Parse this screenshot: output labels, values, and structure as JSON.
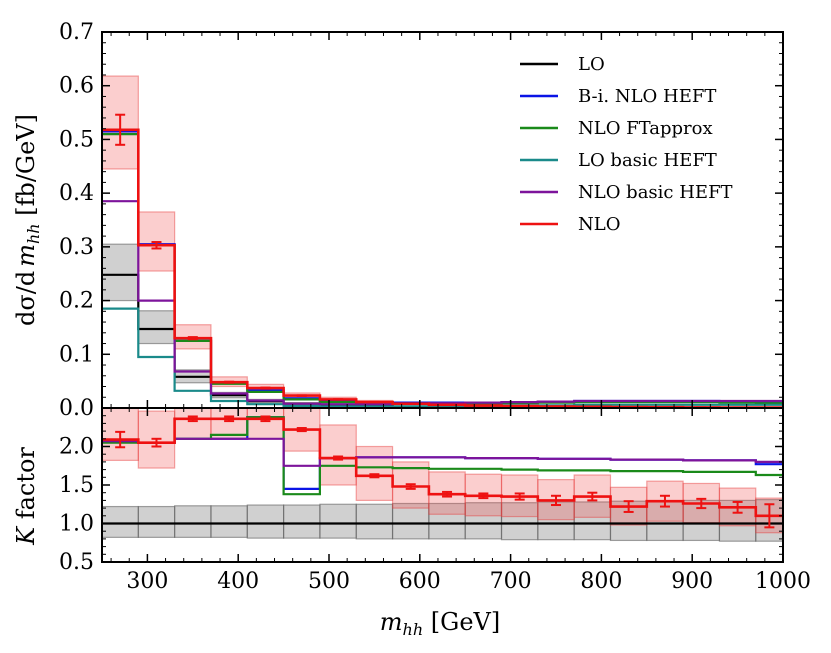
{
  "chart_data": [
    {
      "type": "line",
      "panel": "top",
      "ylabel": "dσ/d m_hh [fb/GeV]",
      "xlim": [
        250,
        1000
      ],
      "ylim": [
        0,
        0.7
      ],
      "yticks": [
        "0.0",
        "0.1",
        "0.2",
        "0.3",
        "0.4",
        "0.5",
        "0.6",
        "0.7"
      ],
      "bin_edges": [
        250,
        290,
        330,
        370,
        410,
        450,
        490,
        530,
        570,
        610,
        650,
        690,
        730,
        770,
        810,
        850,
        890,
        930,
        970,
        1000
      ],
      "legend_position": "top-right",
      "series": [
        {
          "name": "LO",
          "color": "#000000",
          "values": [
            0.248,
            0.147,
            0.058,
            0.024,
            0.013,
            0.008,
            0.005,
            0.0035,
            0.0025,
            0.0018,
            0.0013,
            0.001,
            0.0008,
            0.0006,
            0.0005,
            0.0004,
            0.0003,
            0.0003,
            0.0002
          ],
          "band_lo": [
            0.2,
            0.12,
            0.047,
            0.019,
            0.01,
            0.006,
            0.004,
            0.003,
            0.002,
            0.0015,
            0.001,
            0.0008,
            0.0006,
            0.0005,
            0.0004,
            0.0003,
            0.0002,
            0.0002,
            0.0002
          ],
          "band_hi": [
            0.305,
            0.181,
            0.071,
            0.029,
            0.016,
            0.01,
            0.006,
            0.004,
            0.003,
            0.002,
            0.0016,
            0.0012,
            0.001,
            0.0008,
            0.0006,
            0.0005,
            0.0004,
            0.0003,
            0.0003
          ]
        },
        {
          "name": "B-i. NLO HEFT",
          "color": "#0a14e6",
          "values": [
            0.515,
            0.305,
            0.125,
            0.048,
            0.033,
            0.018,
            0.013,
            0.011,
            0.01,
            0.01,
            0.01,
            0.011,
            0.012,
            0.013,
            0.013,
            0.013,
            0.013,
            0.012,
            0.012
          ]
        },
        {
          "name": "NLO FTapprox",
          "color": "#1a8a1a",
          "values": [
            0.51,
            0.303,
            0.125,
            0.045,
            0.03,
            0.016,
            0.011,
            0.009,
            0.008,
            0.008,
            0.008,
            0.009,
            0.01,
            0.011,
            0.011,
            0.011,
            0.011,
            0.01,
            0.009
          ]
        },
        {
          "name": "LO basic HEFT",
          "color": "#1a8a8a",
          "values": [
            0.185,
            0.095,
            0.032,
            0.013,
            0.007,
            0.004,
            0.003,
            0.003,
            0.003,
            0.004,
            0.004,
            0.005,
            0.005,
            0.006,
            0.006,
            0.006,
            0.006,
            0.006,
            0.006
          ]
        },
        {
          "name": "NLO basic HEFT",
          "color": "#7d149b",
          "values": [
            0.385,
            0.2,
            0.068,
            0.027,
            0.014,
            0.008,
            0.007,
            0.007,
            0.008,
            0.009,
            0.01,
            0.011,
            0.012,
            0.013,
            0.013,
            0.013,
            0.013,
            0.013,
            0.013
          ]
        },
        {
          "name": "NLO",
          "color": "#ee1111",
          "values": [
            0.518,
            0.303,
            0.13,
            0.048,
            0.037,
            0.023,
            0.016,
            0.011,
            0.008,
            0.006,
            0.0045,
            0.0035,
            0.0028,
            0.0022,
            0.0018,
            0.0014,
            0.0011,
            0.0009,
            0.0007
          ],
          "band_lo": [
            0.445,
            0.255,
            0.11,
            0.04,
            0.03,
            0.019,
            0.013,
            0.009,
            0.006,
            0.0045,
            0.0035,
            0.0027,
            0.0021,
            0.0017,
            0.0013,
            0.001,
            0.0008,
            0.0006,
            0.0005
          ],
          "band_hi": [
            0.618,
            0.365,
            0.155,
            0.058,
            0.044,
            0.028,
            0.02,
            0.014,
            0.01,
            0.0075,
            0.0055,
            0.0043,
            0.0034,
            0.0027,
            0.0022,
            0.0017,
            0.0013,
            0.0011,
            0.0009
          ],
          "err": [
            0.028,
            0.006,
            0.002,
            0.001,
            0.001,
            0.0005,
            0.0004,
            0.0003,
            0.0002,
            0.0002,
            0.0002,
            0.0001,
            0.0001,
            0.0001,
            0.0001,
            0.0001,
            0.0001,
            0.0001,
            0.0001
          ]
        }
      ]
    },
    {
      "type": "line",
      "panel": "bottom",
      "ylabel": "K factor",
      "xlabel": "m_hh [GeV]",
      "xlim": [
        250,
        1000
      ],
      "ylim": [
        0.5,
        2.5
      ],
      "yticks": [
        "0.5",
        "1.0",
        "1.5",
        "2.0"
      ],
      "xticks": [
        "300",
        "400",
        "500",
        "600",
        "700",
        "800",
        "900",
        "1000"
      ],
      "bin_edges": [
        250,
        290,
        330,
        370,
        410,
        450,
        490,
        530,
        570,
        610,
        650,
        690,
        730,
        770,
        810,
        850,
        890,
        930,
        970,
        1000
      ],
      "series": [
        {
          "name": "LO",
          "color": "#000000",
          "values": [
            1,
            1,
            1,
            1,
            1,
            1,
            1,
            1,
            1,
            1,
            1,
            1,
            1,
            1,
            1,
            1,
            1,
            1,
            1
          ],
          "band_lo": [
            0.82,
            0.82,
            0.82,
            0.82,
            0.81,
            0.81,
            0.81,
            0.8,
            0.8,
            0.8,
            0.8,
            0.79,
            0.79,
            0.79,
            0.78,
            0.78,
            0.78,
            0.77,
            0.77
          ],
          "band_hi": [
            1.22,
            1.22,
            1.23,
            1.23,
            1.24,
            1.24,
            1.25,
            1.25,
            1.26,
            1.26,
            1.27,
            1.27,
            1.28,
            1.28,
            1.29,
            1.29,
            1.3,
            1.3,
            1.31
          ]
        },
        {
          "name": "B-i. NLO HEFT",
          "color": "#0a14e6",
          "values": [
            2.07,
            2.05,
            2.1,
            2.1,
            2.38,
            1.45,
            1.85,
            1.86,
            1.86,
            1.86,
            1.85,
            1.85,
            1.84,
            1.84,
            1.83,
            1.83,
            1.82,
            1.82,
            1.77
          ]
        },
        {
          "name": "NLO FTapprox",
          "color": "#1a8a1a",
          "values": [
            2.05,
            2.05,
            2.1,
            2.15,
            2.38,
            1.38,
            1.75,
            1.73,
            1.72,
            1.71,
            1.71,
            1.7,
            1.69,
            1.69,
            1.68,
            1.68,
            1.67,
            1.67,
            1.63
          ]
        },
        {
          "name": "NLO basic HEFT",
          "color": "#7d149b",
          "values": [
            2.07,
            2.05,
            2.1,
            2.1,
            2.1,
            1.75,
            1.85,
            1.86,
            1.86,
            1.86,
            1.85,
            1.85,
            1.84,
            1.84,
            1.83,
            1.83,
            1.82,
            1.82,
            1.8
          ]
        },
        {
          "name": "NLO",
          "color": "#ee1111",
          "values": [
            2.09,
            2.05,
            2.36,
            2.36,
            2.36,
            2.22,
            1.85,
            1.62,
            1.48,
            1.38,
            1.36,
            1.35,
            1.3,
            1.35,
            1.22,
            1.29,
            1.26,
            1.21,
            1.1
          ],
          "band_lo": [
            1.82,
            1.72,
            2.1,
            2.1,
            2.1,
            1.94,
            1.5,
            1.3,
            1.2,
            1.12,
            1.1,
            1.09,
            1.05,
            1.08,
            0.98,
            1.03,
            1.01,
            0.97,
            0.88
          ],
          "band_hi": [
            2.5,
            2.46,
            2.5,
            2.5,
            2.5,
            2.5,
            2.28,
            2.0,
            1.8,
            1.67,
            1.64,
            1.63,
            1.57,
            1.63,
            1.47,
            1.55,
            1.52,
            1.46,
            1.33
          ],
          "err": [
            0.1,
            0.05,
            0.03,
            0.03,
            0.03,
            0.02,
            0.02,
            0.02,
            0.03,
            0.03,
            0.03,
            0.04,
            0.06,
            0.05,
            0.07,
            0.07,
            0.06,
            0.07,
            0.15
          ]
        }
      ]
    }
  ],
  "legend": [
    {
      "label": "LO",
      "color": "#000000"
    },
    {
      "label": "B-i. NLO HEFT",
      "color": "#0a14e6"
    },
    {
      "label": "NLO FTapprox",
      "color": "#1a8a1a"
    },
    {
      "label": "LO basic HEFT",
      "color": "#1a8a8a"
    },
    {
      "label": "NLO basic HEFT",
      "color": "#7d149b"
    },
    {
      "label": "NLO",
      "color": "#ee1111"
    }
  ],
  "labels": {
    "top_ylabel_prefix": "dσ/d",
    "top_ylabel_var": "m",
    "top_ylabel_sub": "hh",
    "top_ylabel_suffix": " [fb/GeV]",
    "bottom_ylabel_var": "K",
    "bottom_ylabel_suffix": " factor",
    "xlabel_var": "m",
    "xlabel_sub": "hh",
    "xlabel_suffix": " [GeV]"
  }
}
